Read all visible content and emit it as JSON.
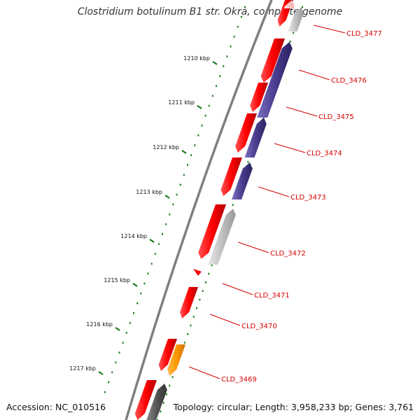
{
  "title": "Clostridium botulinum B1 str. Okra, complete genome",
  "accession": "Accession: NC_010516",
  "topology": "Topology: circular; Length: 3,958,233 bp; Genes: 3,761",
  "colors": {
    "backbone": "#777777",
    "forward": "#ff0000",
    "reverse_purple": "#4a3d8f",
    "pseudo_grey": "#c0c0c0",
    "dark_grey": "#555555",
    "orange": "#ff9900",
    "tick": "#1a7a1a",
    "label": "#d40000"
  },
  "scale_ticks": [
    "1210 kbp",
    "1211 kbp",
    "1212 kbp",
    "1213 kbp",
    "1214 kbp",
    "1215 kbp",
    "1216 kbp",
    "1217 kbp"
  ],
  "gene_labels": [
    "CLD_3477",
    "CLD_3476",
    "CLD_3475",
    "CLD_3474",
    "CLD_3473",
    "CLD_3472",
    "CLD_3471",
    "CLD_3470",
    "CLD_3469"
  ]
}
